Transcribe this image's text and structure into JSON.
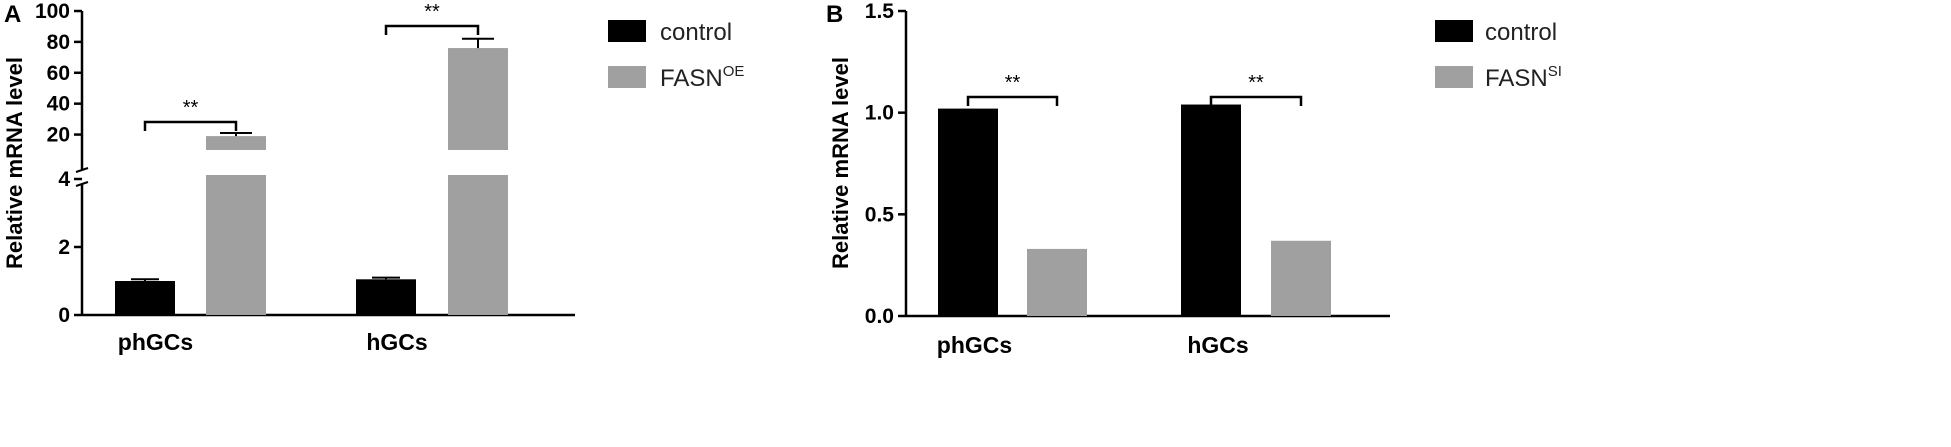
{
  "chart_data": [
    {
      "panel": "A",
      "type": "bar",
      "ylabel": "Relative mRNA level",
      "categories": [
        "phGCs",
        "hGCs"
      ],
      "y_axis_break": true,
      "lower_segment": {
        "ylim": [
          0,
          5
        ],
        "ticks": [
          "0",
          "2",
          "4"
        ]
      },
      "upper_segment": {
        "ylim": [
          10,
          100
        ],
        "ticks": [
          "20",
          "40",
          "60",
          "80",
          "100"
        ]
      },
      "series": [
        {
          "name": "control",
          "color": "#000000",
          "values": [
            1.0,
            1.05
          ],
          "errors": [
            0.05,
            0.05
          ]
        },
        {
          "name": "FASN",
          "name_sup": "OE",
          "color": "#a0a0a0",
          "values": [
            19,
            76
          ],
          "errors": [
            2,
            6
          ]
        }
      ],
      "significance": [
        "**",
        "**"
      ],
      "legend": "right",
      "grid": false
    },
    {
      "panel": "B",
      "type": "bar",
      "ylabel": "Relative mRNA level",
      "categories": [
        "phGCs",
        "hGCs"
      ],
      "ylim": [
        0,
        1.5
      ],
      "ticks": [
        "0.0",
        "0.5",
        "1.0",
        "1.5"
      ],
      "series": [
        {
          "name": "control",
          "color": "#000000",
          "values": [
            1.02,
            1.04
          ]
        },
        {
          "name": "FASN",
          "name_sup": "SI",
          "color": "#a0a0a0",
          "values": [
            0.33,
            0.37
          ]
        }
      ],
      "significance": [
        "**",
        "**"
      ],
      "legend": "right",
      "grid": false
    }
  ]
}
